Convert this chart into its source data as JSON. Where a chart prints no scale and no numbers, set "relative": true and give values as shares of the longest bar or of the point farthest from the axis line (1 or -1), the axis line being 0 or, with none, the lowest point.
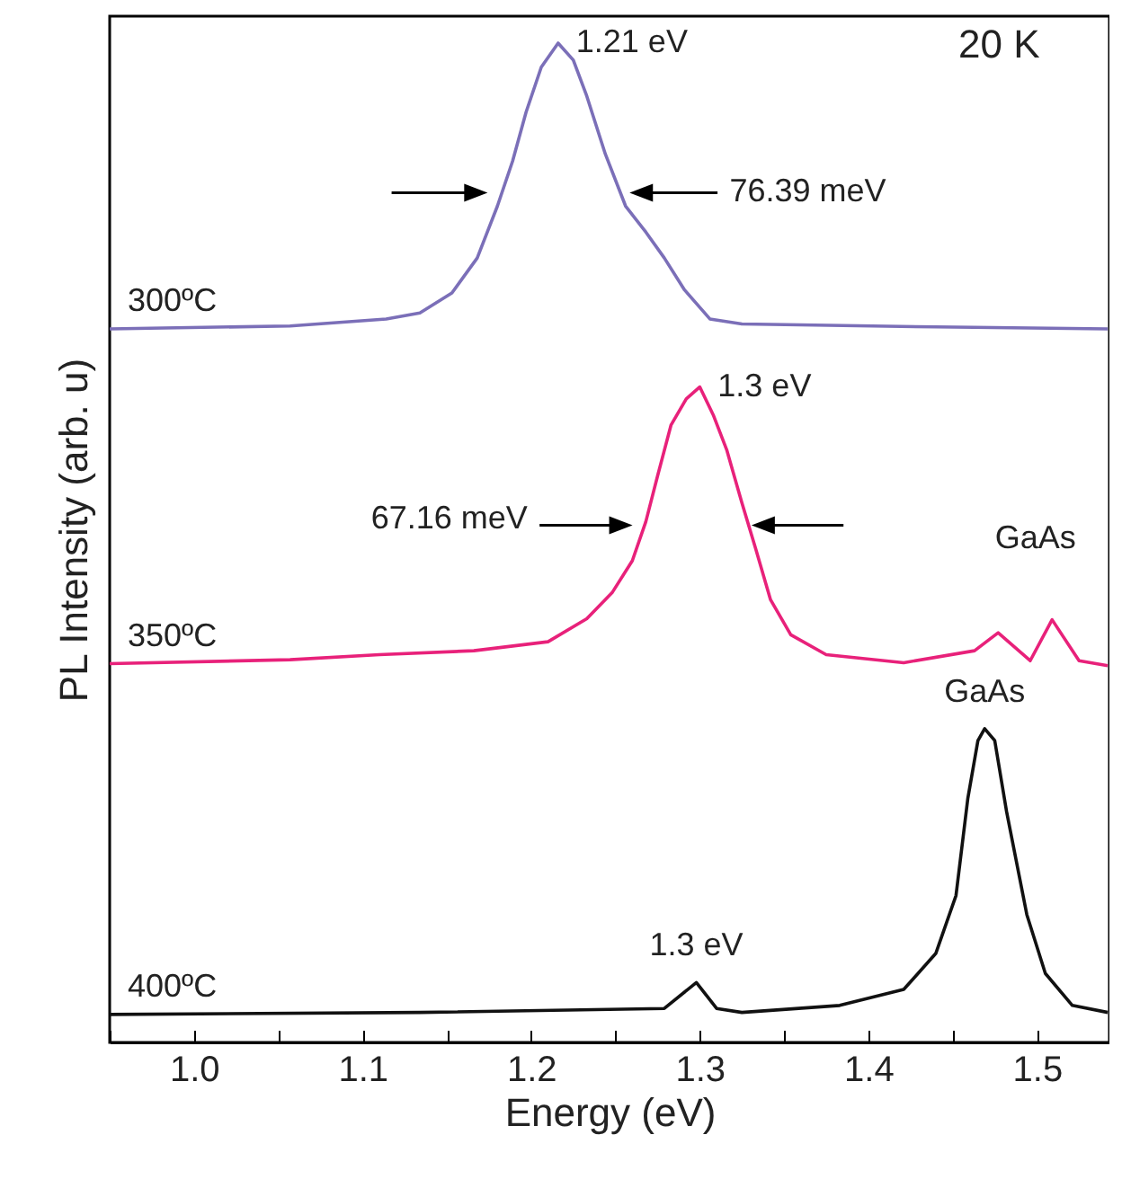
{
  "chart_data": {
    "type": "line",
    "relative": true,
    "xlabel": "Energy (eV)",
    "ylabel": "PL Intensity (arb. u)",
    "xlim": [
      0.95,
      1.543
    ],
    "xticks": [
      {
        "value": 0.95,
        "label": null
      },
      {
        "value": 1.0,
        "label": "1.0"
      },
      {
        "value": 1.05,
        "label": null
      },
      1.1,
      {
        "value": 1.15,
        "label": null
      },
      1.2,
      {
        "value": 1.25,
        "label": null
      },
      1.3,
      {
        "value": 1.35,
        "label": null
      },
      1.4,
      {
        "value": 1.45,
        "label": null
      },
      1.5
    ],
    "grid": false,
    "marker": "none",
    "line_style": "solid",
    "series": [
      {
        "name": "300ºC",
        "color": "#7b6fb8",
        "x": [
          0.95,
          1.057,
          1.114,
          1.134,
          1.153,
          1.168,
          1.18,
          1.189,
          1.197,
          1.206,
          1.216,
          1.225,
          1.233,
          1.244,
          1.256,
          1.268,
          1.279,
          1.291,
          1.306,
          1.325,
          1.44,
          1.542
        ],
        "values": [
          0.714,
          0.717,
          0.724,
          0.73,
          0.75,
          0.785,
          0.837,
          0.882,
          0.931,
          0.976,
          1.0,
          0.983,
          0.947,
          0.889,
          0.837,
          0.811,
          0.785,
          0.753,
          0.724,
          0.719,
          0.716,
          0.714
        ]
      },
      {
        "name": "350ºC",
        "color": "#e8217a",
        "x": [
          0.95,
          1.057,
          1.11,
          1.166,
          1.21,
          1.233,
          1.248,
          1.26,
          1.268,
          1.275,
          1.283,
          1.292,
          1.3,
          1.308,
          1.316,
          1.325,
          1.333,
          1.342,
          1.354,
          1.375,
          1.421,
          1.463,
          1.477,
          1.496,
          1.509,
          1.525,
          1.542
        ],
        "values": [
          0.379,
          0.383,
          0.388,
          0.392,
          0.401,
          0.424,
          0.45,
          0.482,
          0.521,
          0.567,
          0.618,
          0.644,
          0.656,
          0.628,
          0.593,
          0.54,
          0.495,
          0.443,
          0.408,
          0.388,
          0.38,
          0.392,
          0.41,
          0.382,
          0.423,
          0.382,
          0.377
        ]
      },
      {
        "name": "400ºC",
        "color": "#111111",
        "x": [
          0.95,
          1.134,
          1.279,
          1.298,
          1.31,
          1.325,
          1.383,
          1.421,
          1.44,
          1.452,
          1.459,
          1.465,
          1.469,
          1.475,
          1.482,
          1.494,
          1.505,
          1.521,
          1.542
        ],
        "values": [
          0.028,
          0.03,
          0.034,
          0.06,
          0.034,
          0.03,
          0.037,
          0.053,
          0.089,
          0.147,
          0.244,
          0.302,
          0.314,
          0.302,
          0.231,
          0.128,
          0.069,
          0.037,
          0.03
        ]
      }
    ],
    "annotations": [
      {
        "text": "1.21 eV",
        "x": 1.216,
        "y": 1.0
      },
      "20 K",
      "76.39 meV",
      {
        "text": "1.3 eV",
        "x": 1.3,
        "y": 0.656
      },
      "67.16 meV",
      "GaAs",
      {
        "text": "GaAs",
        "x": 1.469,
        "y": 0.314
      },
      {
        "text": "1.3 eV",
        "x": 1.298,
        "y": 0.06
      }
    ]
  }
}
